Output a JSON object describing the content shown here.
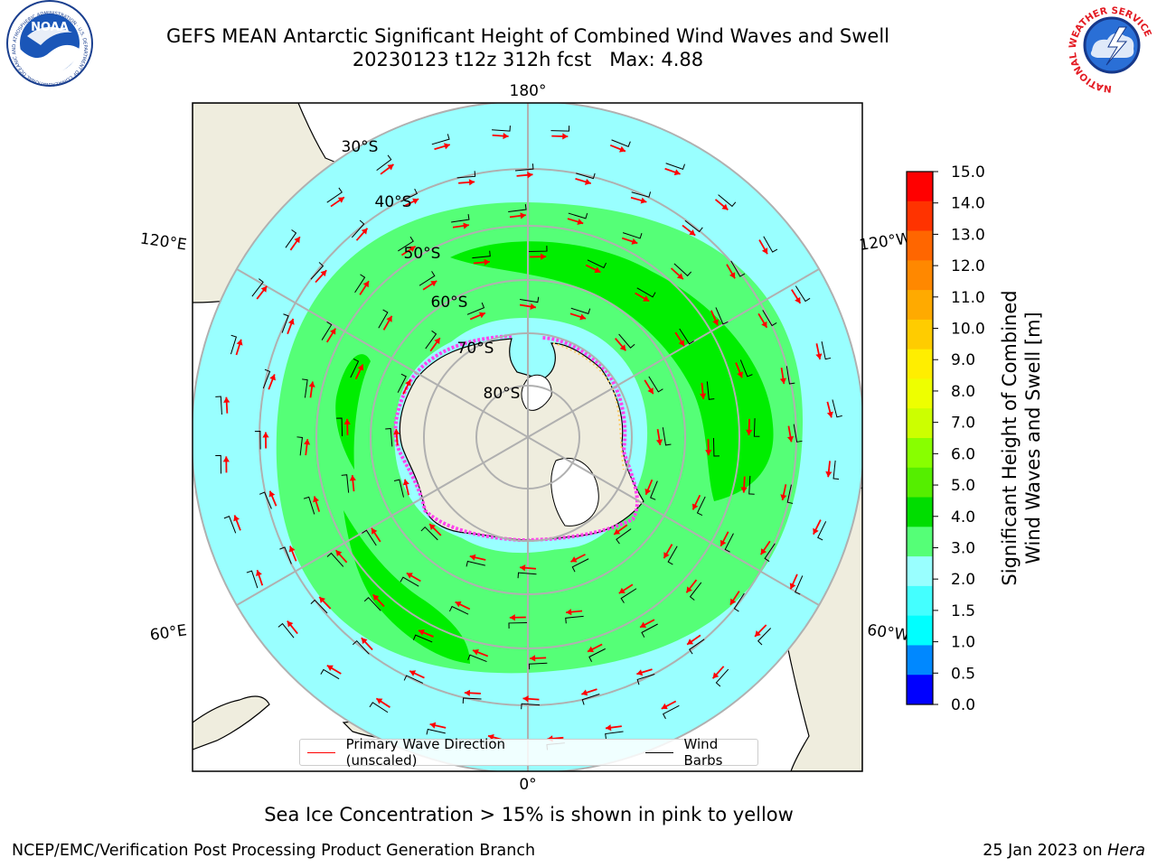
{
  "header": {
    "title_line1": "GEFS MEAN Antarctic Significant Height of Combined Wind Waves and Swell",
    "title_line2": "20230123 t12z 312h fcst   Max: 4.88"
  },
  "map": {
    "longitude_labels": [
      "180°",
      "120°E",
      "120°W",
      "60°E",
      "60°W",
      "0°"
    ],
    "latitude_labels": [
      "30°S",
      "40°S",
      "50°S",
      "60°S",
      "70°S",
      "80°S"
    ]
  },
  "legend": {
    "wave_label": "Primary Wave Direction (unscaled)",
    "barb_label": "Wind Barbs",
    "wave_color": "#ff0000",
    "barb_color": "#000000"
  },
  "colorbar": {
    "label_line1": "Significant Height of Combined",
    "label_line2": "Wind Waves and Swell [m]",
    "ticks": [
      "15.0",
      "14.0",
      "13.0",
      "12.0",
      "11.0",
      "10.0",
      "9.0",
      "8.0",
      "7.0",
      "6.0",
      "5.0",
      "4.0",
      "3.0",
      "2.0",
      "1.5",
      "1.0",
      "0.5",
      "0.0"
    ],
    "colors": [
      "#ff0000",
      "#ff3300",
      "#ff6600",
      "#ff8800",
      "#ffaa00",
      "#ffcc00",
      "#ffee00",
      "#eeff00",
      "#ccff00",
      "#88ff00",
      "#55ee00",
      "#00dd00",
      "#55ff77",
      "#99ffff",
      "#44ffff",
      "#00ffff",
      "#0088ff",
      "#0000ff"
    ]
  },
  "note": "Sea Ice Concentration > 15% is shown in pink to yellow",
  "footer": {
    "left": "NCEP/EMC/Verification Post Processing Product Generation Branch",
    "right_prefix": "25 Jan 2023 on ",
    "right_italic": "Hera"
  },
  "logos": {
    "noaa": "NOAA",
    "noaa_ring": "NATIONAL OCEANIC AND ATMOSPHERIC ADMINISTRATION · U.S. DEPARTMENT OF COMMERCE",
    "nws_ring": "NATIONAL WEATHER SERVICE"
  }
}
